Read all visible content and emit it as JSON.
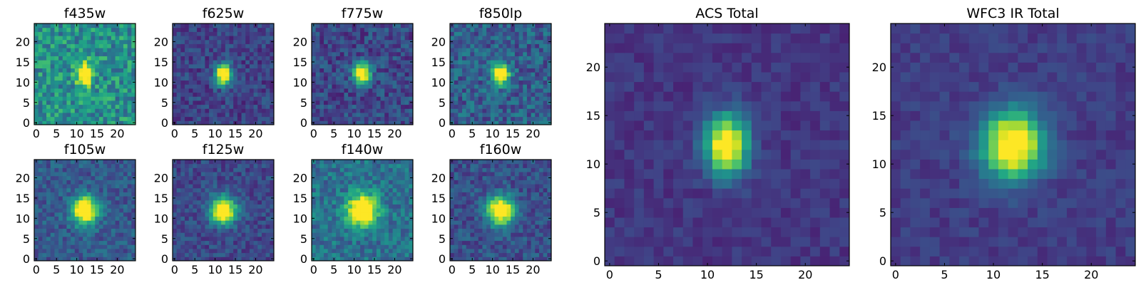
{
  "chart_data": [
    {
      "type": "heatmap",
      "title": "f435w",
      "shape": [
        25,
        25
      ],
      "source_center": [
        12,
        12
      ],
      "source_sigma": [
        1.3,
        1.8
      ],
      "peak_value": 1.0,
      "background_level": 0.5,
      "noise_level": 0.2,
      "xlim": [
        0,
        24
      ],
      "ylim": [
        0,
        24
      ],
      "xticks": [
        0,
        5,
        10,
        15,
        20
      ],
      "yticks": [
        0,
        5,
        10,
        15,
        20
      ],
      "colormap": "viridis"
    },
    {
      "type": "heatmap",
      "title": "f625w",
      "shape": [
        25,
        25
      ],
      "source_center": [
        12,
        12
      ],
      "source_sigma": [
        1.4,
        1.8
      ],
      "peak_value": 1.0,
      "background_level": 0.2,
      "noise_level": 0.12,
      "xlim": [
        0,
        24
      ],
      "ylim": [
        0,
        24
      ],
      "xticks": [
        0,
        5,
        10,
        15,
        20
      ],
      "yticks": [
        0,
        5,
        10,
        15,
        20
      ],
      "colormap": "viridis"
    },
    {
      "type": "heatmap",
      "title": "f775w",
      "shape": [
        25,
        25
      ],
      "source_center": [
        12,
        12
      ],
      "source_sigma": [
        1.4,
        1.8
      ],
      "peak_value": 1.0,
      "background_level": 0.22,
      "noise_level": 0.14,
      "xlim": [
        0,
        24
      ],
      "ylim": [
        0,
        24
      ],
      "xticks": [
        0,
        5,
        10,
        15,
        20
      ],
      "yticks": [
        0,
        5,
        10,
        15,
        20
      ],
      "colormap": "viridis"
    },
    {
      "type": "heatmap",
      "title": "f850lp",
      "shape": [
        25,
        25
      ],
      "source_center": [
        12,
        12
      ],
      "source_sigma": [
        1.4,
        1.8
      ],
      "peak_value": 1.0,
      "background_level": 0.3,
      "noise_level": 0.16,
      "xlim": [
        0,
        24
      ],
      "ylim": [
        0,
        24
      ],
      "xticks": [
        0,
        5,
        10,
        15,
        20
      ],
      "yticks": [
        0,
        5,
        10,
        15,
        20
      ],
      "colormap": "viridis"
    },
    {
      "type": "heatmap",
      "title": "f105w",
      "shape": [
        25,
        25
      ],
      "source_center": [
        12,
        12
      ],
      "source_sigma": [
        2.2,
        2.4
      ],
      "peak_value": 1.0,
      "background_level": 0.28,
      "noise_level": 0.12,
      "xlim": [
        0,
        24
      ],
      "ylim": [
        0,
        24
      ],
      "xticks": [
        0,
        5,
        10,
        15,
        20
      ],
      "yticks": [
        0,
        5,
        10,
        15,
        20
      ],
      "colormap": "viridis"
    },
    {
      "type": "heatmap",
      "title": "f125w",
      "shape": [
        25,
        25
      ],
      "source_center": [
        12,
        12
      ],
      "source_sigma": [
        2.2,
        2.3
      ],
      "peak_value": 1.0,
      "background_level": 0.22,
      "noise_level": 0.11,
      "xlim": [
        0,
        24
      ],
      "ylim": [
        0,
        24
      ],
      "xticks": [
        0,
        5,
        10,
        15,
        20
      ],
      "yticks": [
        0,
        5,
        10,
        15,
        20
      ],
      "colormap": "viridis"
    },
    {
      "type": "heatmap",
      "title": "f140w",
      "shape": [
        25,
        25
      ],
      "source_center": [
        12,
        12
      ],
      "source_sigma": [
        2.5,
        2.6
      ],
      "peak_value": 1.0,
      "background_level": 0.38,
      "noise_level": 0.14,
      "xlim": [
        0,
        24
      ],
      "ylim": [
        0,
        24
      ],
      "xticks": [
        0,
        5,
        10,
        15,
        20
      ],
      "yticks": [
        0,
        5,
        10,
        15,
        20
      ],
      "colormap": "viridis"
    },
    {
      "type": "heatmap",
      "title": "f160w",
      "shape": [
        25,
        25
      ],
      "source_center": [
        12,
        12
      ],
      "source_sigma": [
        2.3,
        2.4
      ],
      "peak_value": 1.0,
      "background_level": 0.25,
      "noise_level": 0.12,
      "xlim": [
        0,
        24
      ],
      "ylim": [
        0,
        24
      ],
      "xticks": [
        0,
        5,
        10,
        15,
        20
      ],
      "yticks": [
        0,
        5,
        10,
        15,
        20
      ],
      "colormap": "viridis"
    },
    {
      "type": "heatmap",
      "title": "ACS Total",
      "shape": [
        25,
        25
      ],
      "source_center": [
        12,
        12
      ],
      "source_sigma": [
        1.5,
        2.1
      ],
      "peak_value": 1.0,
      "background_level": 0.16,
      "noise_level": 0.06,
      "xlim": [
        0,
        24
      ],
      "ylim": [
        0,
        24
      ],
      "xticks": [
        0,
        5,
        10,
        15,
        20
      ],
      "yticks": [
        0,
        5,
        10,
        15,
        20
      ],
      "colormap": "viridis"
    },
    {
      "type": "heatmap",
      "title": "WFC3 IR Total",
      "shape": [
        25,
        25
      ],
      "source_center": [
        12,
        12
      ],
      "source_sigma": [
        2.2,
        2.4
      ],
      "peak_value": 1.0,
      "background_level": 0.18,
      "noise_level": 0.06,
      "xlim": [
        0,
        24
      ],
      "ylim": [
        0,
        24
      ],
      "xticks": [
        0,
        5,
        10,
        15,
        20
      ],
      "yticks": [
        0,
        5,
        10,
        15,
        20
      ],
      "colormap": "viridis"
    }
  ]
}
